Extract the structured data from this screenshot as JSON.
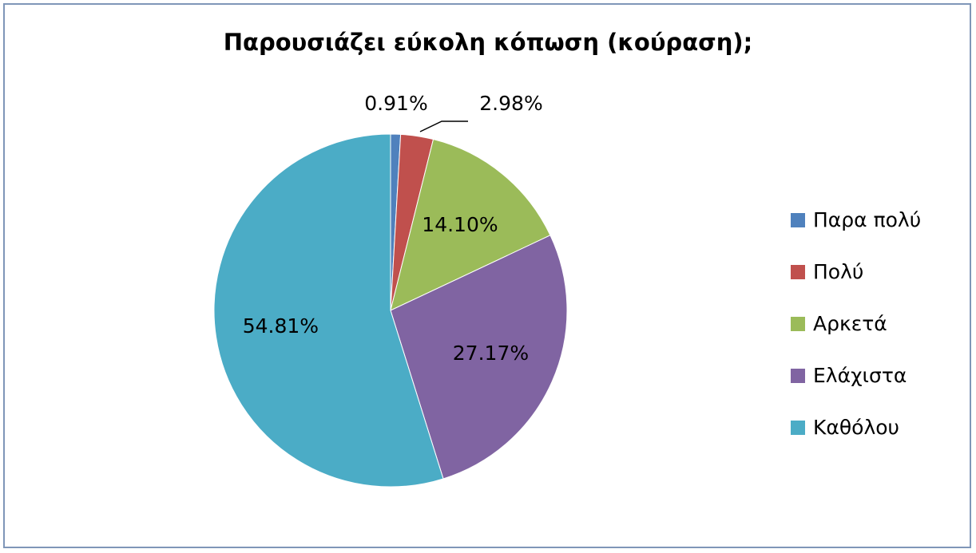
{
  "chart_data": {
    "type": "pie",
    "title": "Παρουσιάζει εύκολη κόπωση (κούραση);",
    "categories": [
      "Παρα πολύ",
      "Πολύ",
      "Αρκετά",
      "Ελάχιστα",
      "Καθόλου"
    ],
    "values": [
      0.91,
      2.98,
      14.1,
      27.17,
      54.81
    ],
    "data_labels": [
      "0.91%",
      "2.98%",
      "14.10%",
      "27.17%",
      "54.81%"
    ],
    "colors": [
      "#4f81bd",
      "#c0504d",
      "#9bbb59",
      "#8064a2",
      "#4bacc6"
    ],
    "legend_position": "right",
    "start_angle": "12 o'clock, clockwise"
  }
}
